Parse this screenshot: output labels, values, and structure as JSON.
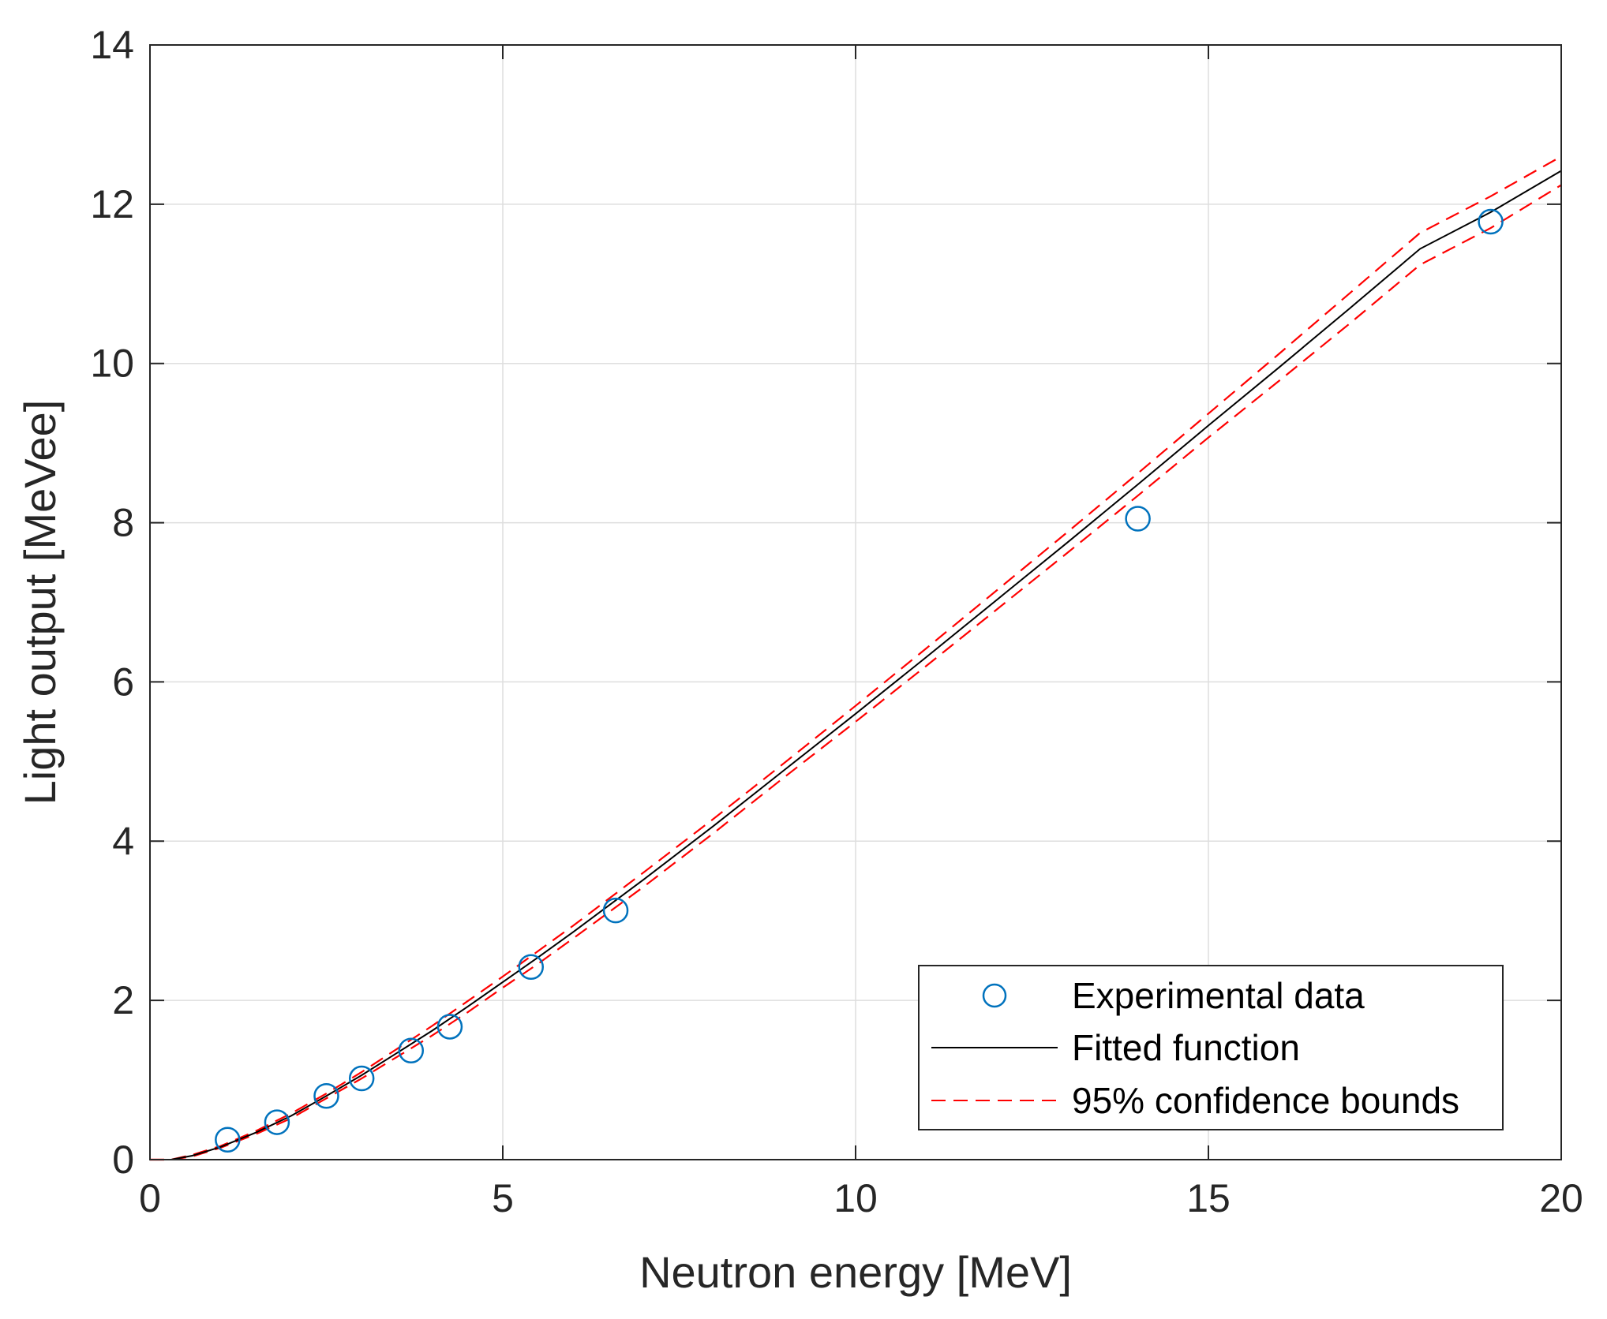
{
  "chart_data": {
    "type": "scatter",
    "title": "",
    "xlabel": "Neutron energy [MeV]",
    "ylabel": "Light output [MeVee]",
    "xlim": [
      0,
      20
    ],
    "ylim": [
      0,
      14
    ],
    "xticks": [
      0,
      5,
      10,
      15,
      20
    ],
    "yticks": [
      0,
      2,
      4,
      6,
      8,
      10,
      12,
      14
    ],
    "grid": true,
    "legend": {
      "position": "bottom-right",
      "entries": [
        "Experimental data",
        "Fitted function",
        "95% confidence bounds"
      ]
    },
    "series": [
      {
        "name": "Experimental data",
        "type": "scatter",
        "marker": "circle",
        "color": "#0072BD",
        "x": [
          1.1,
          1.8,
          2.5,
          3.0,
          3.7,
          4.25,
          5.4,
          6.6,
          14.0,
          19.0
        ],
        "y": [
          0.25,
          0.47,
          0.8,
          1.02,
          1.37,
          1.67,
          2.42,
          3.13,
          8.05,
          11.78
        ]
      },
      {
        "name": "Fitted function",
        "type": "line",
        "color": "#000000",
        "x": [
          0.3,
          0.6,
          1.0,
          1.5,
          2.0,
          2.5,
          3.0,
          3.5,
          4.0,
          4.5,
          5.0,
          5.5,
          6.0,
          7.0,
          8.0,
          9.0,
          10.0,
          11.0,
          12.0,
          13.0,
          14.0,
          15.0,
          16.0,
          17.0,
          18.0,
          19.0,
          20.0
        ],
        "y": [
          0.0,
          0.05,
          0.16,
          0.34,
          0.55,
          0.8,
          1.06,
          1.34,
          1.62,
          1.92,
          2.23,
          2.54,
          2.86,
          3.52,
          4.2,
          4.9,
          5.6,
          6.31,
          7.03,
          7.75,
          8.48,
          9.22,
          9.95,
          10.69,
          11.44,
          11.9,
          12.42
        ]
      },
      {
        "name": "95% confidence bounds",
        "type": "line",
        "style": "dashed",
        "color": "#FF0000",
        "x": [
          0.3,
          0.6,
          1.0,
          1.5,
          2.0,
          2.5,
          3.0,
          3.5,
          4.0,
          4.5,
          5.0,
          5.5,
          6.0,
          7.0,
          8.0,
          9.0,
          10.0,
          11.0,
          12.0,
          13.0,
          14.0,
          15.0,
          16.0,
          17.0,
          18.0,
          19.0,
          20.0
        ],
        "y_upper": [
          0.0,
          0.06,
          0.17,
          0.36,
          0.58,
          0.83,
          1.1,
          1.39,
          1.68,
          1.99,
          2.3,
          2.62,
          2.94,
          3.61,
          4.29,
          4.99,
          5.7,
          6.42,
          7.15,
          7.88,
          8.62,
          9.37,
          10.12,
          10.88,
          11.64,
          12.1,
          12.6
        ],
        "y_lower": [
          0.0,
          0.04,
          0.15,
          0.32,
          0.52,
          0.77,
          1.02,
          1.29,
          1.56,
          1.85,
          2.16,
          2.46,
          2.78,
          3.43,
          4.11,
          4.81,
          5.5,
          6.2,
          6.91,
          7.62,
          8.34,
          9.07,
          9.78,
          10.5,
          11.24,
          11.7,
          12.24
        ]
      }
    ]
  }
}
